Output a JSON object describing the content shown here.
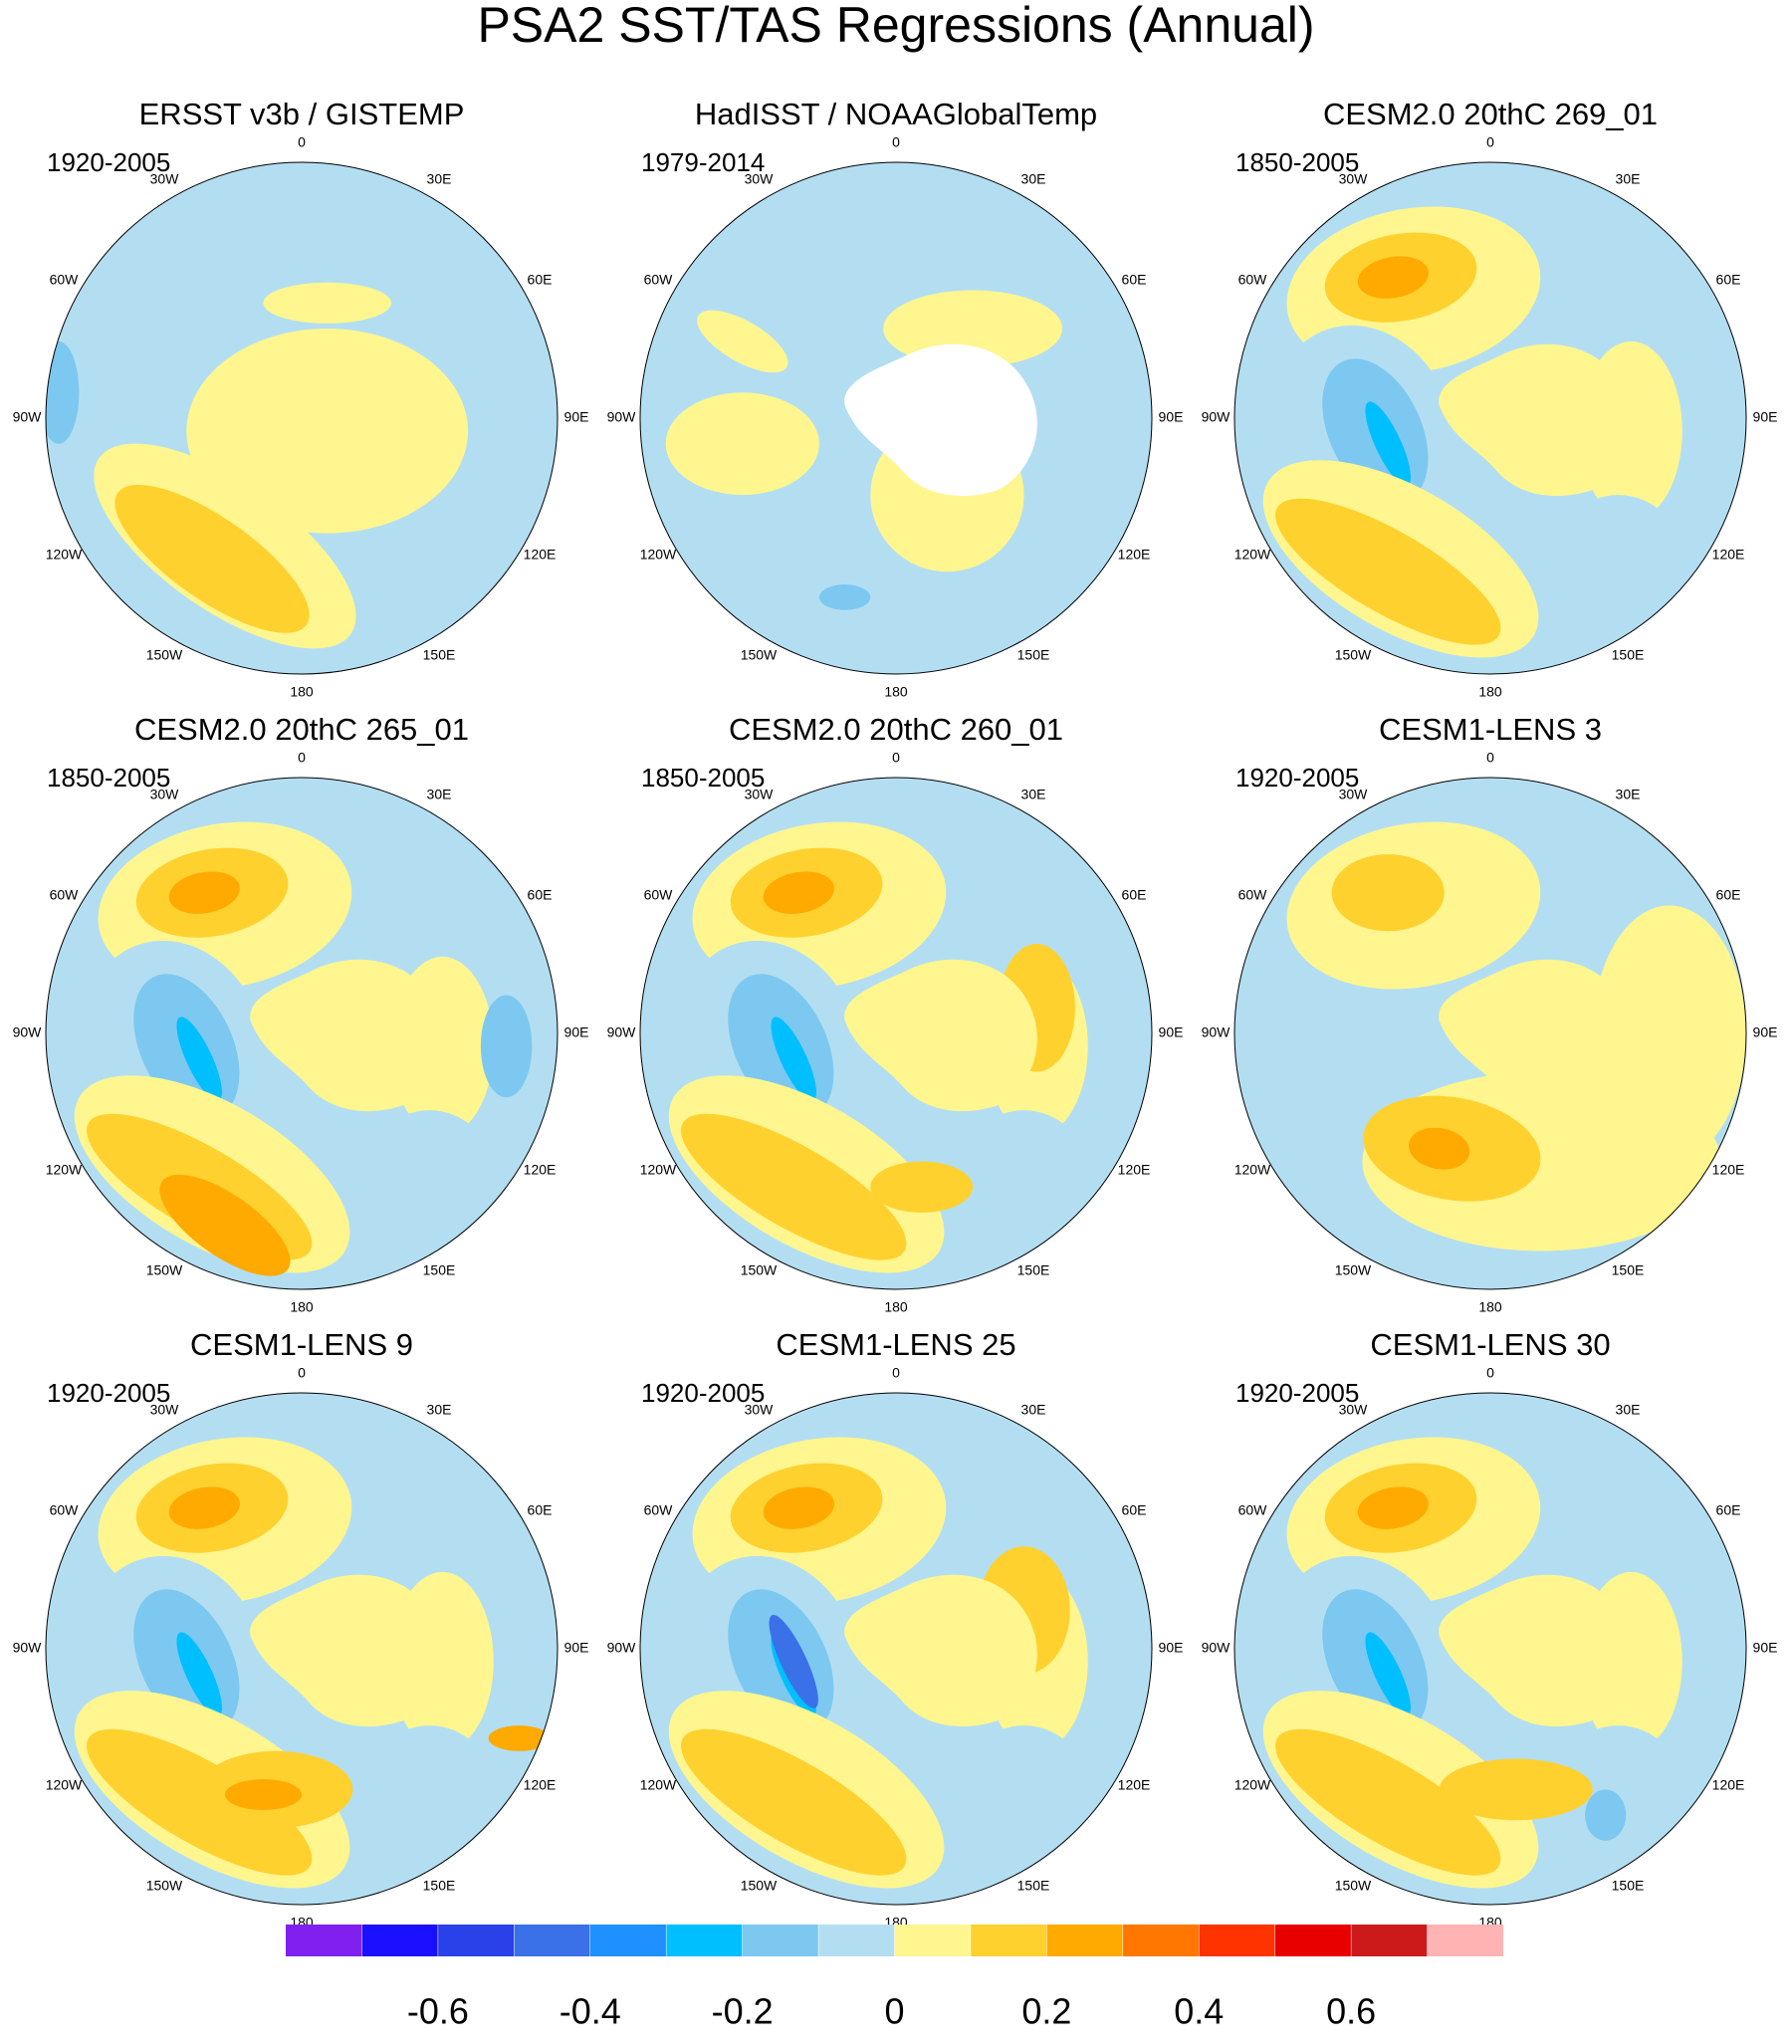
{
  "title": "PSA2 SST/TAS Regressions (Annual)",
  "longitude_labels": [
    "0",
    "30E",
    "60E",
    "90E",
    "120E",
    "150E",
    "180",
    "150W",
    "120W",
    "90W",
    "60W",
    "30W"
  ],
  "panels": [
    {
      "title": "ERSST v3b / GISTEMP",
      "period": "1920-2005"
    },
    {
      "title": "HadISST / NOAAGlobalTemp",
      "period": "1979-2014"
    },
    {
      "title": "CESM2.0 20thC 269_01",
      "period": "1850-2005"
    },
    {
      "title": "CESM2.0 20thC 265_01",
      "period": "1850-2005"
    },
    {
      "title": "CESM2.0 20thC 260_01",
      "period": "1850-2005"
    },
    {
      "title": "CESM1-LENS 3",
      "period": "1920-2005"
    },
    {
      "title": "CESM1-LENS 9",
      "period": "1920-2005"
    },
    {
      "title": "CESM1-LENS 25",
      "period": "1920-2005"
    },
    {
      "title": "CESM1-LENS 30",
      "period": "1920-2005"
    }
  ],
  "colorbar": {
    "colors": [
      "#8020f0",
      "#1a10ff",
      "#2a40e8",
      "#3a70e8",
      "#1e90ff",
      "#00bfff",
      "#7dc8f0",
      "#b3def2",
      "#fff68f",
      "#ffd12e",
      "#ffaa00",
      "#ff7700",
      "#ff3300",
      "#e80000",
      "#cc1a1a",
      "#ffb3b3"
    ],
    "levels": [
      -0.7,
      -0.6,
      -0.5,
      -0.4,
      -0.3,
      -0.2,
      -0.1,
      0,
      0.1,
      0.2,
      0.3,
      0.4,
      0.5,
      0.6,
      0.7
    ],
    "ticks": [
      -0.6,
      -0.4,
      -0.2,
      0,
      0.2,
      0.4,
      0.6
    ]
  }
}
